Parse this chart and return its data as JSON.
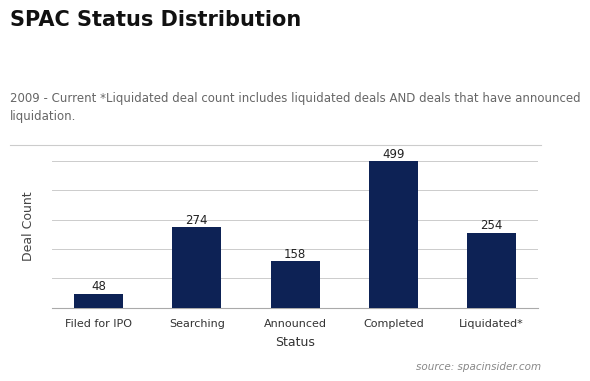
{
  "title": "SPAC Status Distribution",
  "subtitle": "2009 - Current *Liquidated deal count includes liquidated deals AND deals that have announced\nliquidation.",
  "categories": [
    "Filed for IPO",
    "Searching",
    "Announced",
    "Completed",
    "Liquidated*"
  ],
  "values": [
    48,
    274,
    158,
    499,
    254
  ],
  "bar_color": "#0d2255",
  "xlabel": "Status",
  "ylabel": "Deal Count",
  "ylim": [
    0,
    560
  ],
  "yticks": [
    0,
    100,
    200,
    300,
    400,
    500
  ],
  "source_text": "source: spacinsider.com",
  "background_color": "#ffffff",
  "title_fontsize": 15,
  "subtitle_fontsize": 8.5,
  "label_fontsize": 8.5,
  "xlabel_fontsize": 9,
  "ylabel_fontsize": 9,
  "source_fontsize": 7.5
}
